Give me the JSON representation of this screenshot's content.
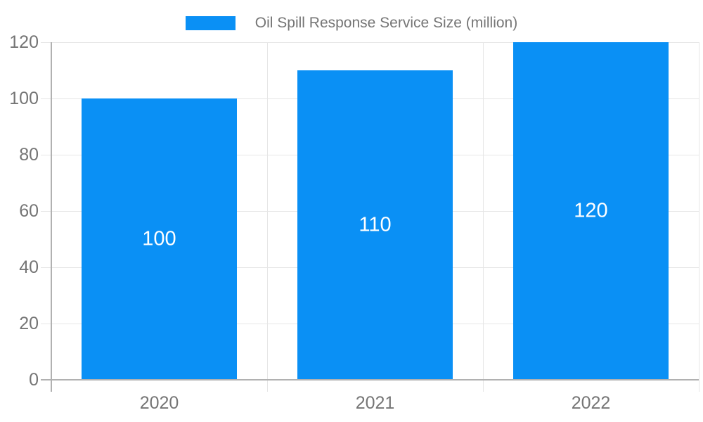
{
  "chart_data": {
    "type": "bar",
    "title": "Oil Spill Response Service Size (million)",
    "categories": [
      "2020",
      "2021",
      "2022"
    ],
    "values": [
      100,
      110,
      120
    ],
    "xlabel": "",
    "ylabel": "",
    "ylim": [
      0,
      120
    ],
    "yticks": [
      0,
      20,
      40,
      60,
      80,
      100,
      120
    ],
    "grid": true,
    "legend_position": "top-center",
    "legend_entries": [
      "Oil Spill Response Service Size (million)"
    ],
    "data_labels_position": "inside-center"
  },
  "colors": {
    "bar": "#0a90f5",
    "axis": "#b1b1b1",
    "grid": "#e6e6e6",
    "label": "#757575",
    "bar_label": "#ffffff",
    "background": "#ffffff"
  }
}
